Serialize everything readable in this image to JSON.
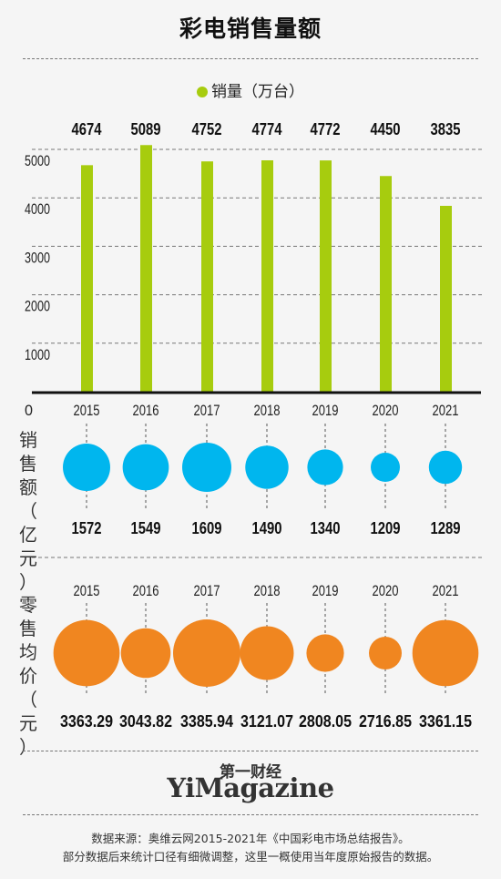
{
  "title": "彩电销售量额",
  "legend_label": "销量（万台）",
  "colors": {
    "volume": "#a7cc0e",
    "sales": "#00b6ee",
    "price": "#f08620",
    "axis": "#111111"
  },
  "y_axis_ticks": [
    "5000",
    "4000",
    "3000",
    "2000",
    "1000",
    "0"
  ],
  "sales_label": [
    "销",
    "售",
    "额",
    "（",
    "亿",
    "元",
    "）"
  ],
  "price_label": [
    "零",
    "售",
    "均",
    "价",
    "（",
    "元",
    "）"
  ],
  "chart_data": [
    {
      "type": "bar",
      "categories": [
        "2015",
        "2016",
        "2017",
        "2018",
        "2019",
        "2020",
        "2021"
      ],
      "series": [
        {
          "name": "销量（万台）",
          "values": [
            4674,
            5089,
            4752,
            4774,
            4772,
            4450,
            3835
          ]
        }
      ],
      "data_labels": [
        "4674",
        "5089",
        "4752",
        "4774",
        "4772",
        "4450",
        "3835"
      ],
      "ylim": [
        0,
        5000
      ],
      "ylabel": ""
    },
    {
      "type": "scatter",
      "categories": [
        "2015",
        "2016",
        "2017",
        "2018",
        "2019",
        "2020",
        "2021"
      ],
      "series": [
        {
          "name": "销售额（亿元）",
          "values": [
            1572,
            1549,
            1609,
            1490,
            1340,
            1209,
            1289
          ]
        }
      ],
      "data_labels": [
        "1572",
        "1549",
        "1609",
        "1490",
        "1340",
        "1209",
        "1289"
      ]
    },
    {
      "type": "scatter",
      "categories": [
        "2015",
        "2016",
        "2017",
        "2018",
        "2019",
        "2020",
        "2021"
      ],
      "series": [
        {
          "name": "零售均价（元）",
          "values": [
            3363.29,
            3043.82,
            3385.94,
            3121.07,
            2808.05,
            2716.85,
            3361.15
          ]
        }
      ],
      "data_labels": [
        "3363.29",
        "3043.82",
        "3385.94",
        "3121.07",
        "2808.05",
        "2716.85",
        "3361.15"
      ]
    }
  ],
  "brand_cn": "第一财经",
  "brand_en": "YiMagazine",
  "source_line1": "数据来源：奥维云网2015-2021年《中国彩电市场总结报告》。",
  "source_line2": "部分数据后来统计口径有细微调整，这里一概使用当年度原始报告的数据。"
}
